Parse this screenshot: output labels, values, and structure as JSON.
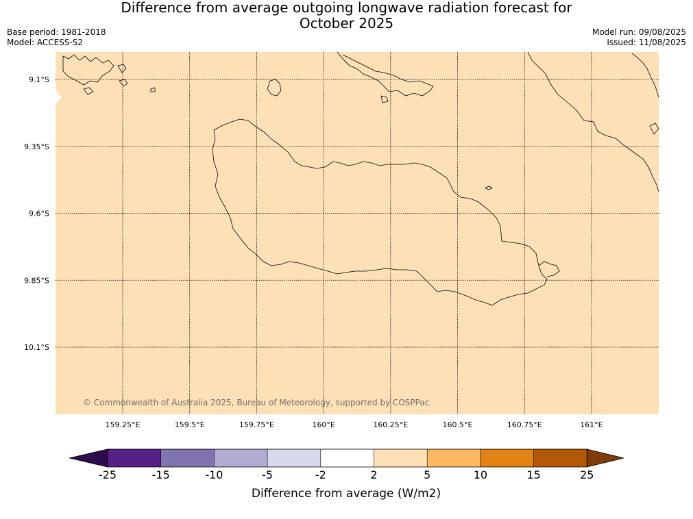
{
  "header": {
    "title_line1": "Difference from average outgoing longwave radiation forecast for",
    "title_line2": "October 2025",
    "base_period": "Base period: 1981-2018",
    "model": "Model: ACCESS-S2",
    "model_run": "Model run: 09/08/2025",
    "issued": "Issued: 11/08/2025"
  },
  "map": {
    "fill_color": "#fde0b6",
    "copyright": "© Commonwealth of Australia 2025, Bureau of Meteorology, supported by COSPPac",
    "lat_labels": [
      "9.1°S",
      "9.35°S",
      "9.6°S",
      "9.85°S",
      "10.1°S"
    ],
    "lon_labels": [
      "159.25°E",
      "159.5°E",
      "159.75°E",
      "160°E",
      "160.25°E",
      "160.5°E",
      "160.75°E",
      "161°E"
    ]
  },
  "colorbar": {
    "title": "Difference from average (W/m2)",
    "labels": [
      "-25",
      "-15",
      "-10",
      "-5",
      "-2",
      "2",
      "5",
      "10",
      "15",
      "25"
    ],
    "colors": [
      "#2d0a4e",
      "#542287",
      "#8173ad",
      "#b2abd3",
      "#d8daeb",
      "#ffffff",
      "#fee0b6",
      "#fdb863",
      "#e08214",
      "#b35806",
      "#7f3b08"
    ]
  }
}
